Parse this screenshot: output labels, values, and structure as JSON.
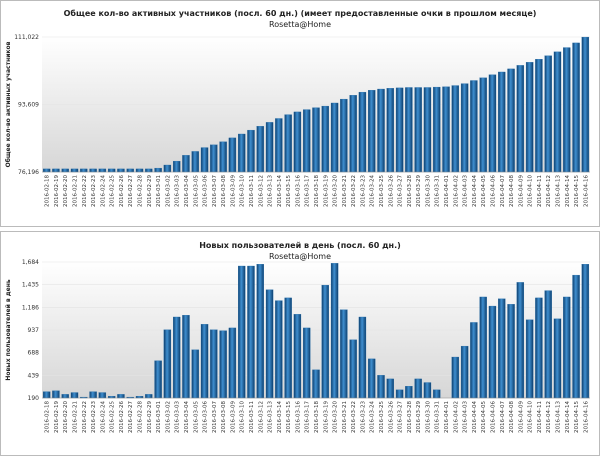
{
  "chart_data": [
    {
      "type": "bar",
      "title": "Общее кол-во активных участников (посл. 60 дн.) (имеет предоставленные очки в прошлом месяце)",
      "subtitle": "Rosetta@Home",
      "y_label": "Общее кол-во активных участников",
      "color": "#1e6aa8",
      "grid": true,
      "ylim": [
        76196,
        111022
      ],
      "yticks": [
        {
          "value": 76196,
          "label": "76,196"
        },
        {
          "value": 93609,
          "label": "93,609"
        },
        {
          "value": 111022,
          "label": "111,022"
        }
      ],
      "categories": [
        "2016-02-18",
        "2016-02-19",
        "2016-02-20",
        "2016-02-21",
        "2016-02-22",
        "2016-02-23",
        "2016-02-24",
        "2016-02-25",
        "2016-02-26",
        "2016-02-27",
        "2016-02-28",
        "2016-02-29",
        "2016-03-01",
        "2016-03-02",
        "2016-03-03",
        "2016-03-04",
        "2016-03-05",
        "2016-03-06",
        "2016-03-07",
        "2016-03-08",
        "2016-03-09",
        "2016-03-10",
        "2016-03-11",
        "2016-03-12",
        "2016-03-13",
        "2016-03-14",
        "2016-03-15",
        "2016-03-16",
        "2016-03-17",
        "2016-03-18",
        "2016-03-19",
        "2016-03-20",
        "2016-03-21",
        "2016-03-22",
        "2016-03-23",
        "2016-03-24",
        "2016-03-25",
        "2016-03-26",
        "2016-03-27",
        "2016-03-28",
        "2016-03-29",
        "2016-03-30",
        "2016-03-31",
        "2016-04-01",
        "2016-04-02",
        "2016-04-03",
        "2016-04-04",
        "2016-04-05",
        "2016-04-06",
        "2016-04-07",
        "2016-04-08",
        "2016-04-09",
        "2016-04-10",
        "2016-04-11",
        "2016-04-12",
        "2016-04-13",
        "2016-04-14",
        "2016-04-15",
        "2016-04-16"
      ],
      "values": [
        77000,
        77000,
        77000,
        77000,
        77000,
        77000,
        77000,
        77000,
        77000,
        77000,
        77000,
        77000,
        77200,
        78000,
        79000,
        80500,
        81500,
        82500,
        83200,
        84000,
        85000,
        86000,
        87000,
        88000,
        89000,
        90000,
        91000,
        91700,
        92300,
        92800,
        93200,
        94000,
        95000,
        96000,
        96800,
        97300,
        97600,
        97800,
        97900,
        98000,
        98000,
        98000,
        98100,
        98200,
        98500,
        99000,
        99800,
        100500,
        101300,
        102000,
        102800,
        103700,
        104500,
        105300,
        106200,
        107200,
        108300,
        109500,
        111000
      ]
    },
    {
      "type": "bar",
      "title": "Новых пользователей в день (посл. 60 дн.)",
      "subtitle": "Rosetta@Home",
      "y_label": "Новых пользователей в день",
      "color": "#1e6aa8",
      "grid": true,
      "ylim": [
        190,
        1684
      ],
      "yticks": [
        190,
        439,
        688,
        937,
        {
          "value": 1186,
          "label": "1,186"
        },
        {
          "value": 1435,
          "label": "1,435"
        },
        {
          "value": 1684,
          "label": "1,684"
        }
      ],
      "categories": [
        "2016-02-18",
        "2016-02-19",
        "2016-02-20",
        "2016-02-21",
        "2016-02-22",
        "2016-02-23",
        "2016-02-24",
        "2016-02-25",
        "2016-02-26",
        "2016-02-27",
        "2016-02-28",
        "2016-02-29",
        "2016-03-01",
        "2016-03-02",
        "2016-03-03",
        "2016-03-04",
        "2016-03-05",
        "2016-03-06",
        "2016-03-07",
        "2016-03-08",
        "2016-03-09",
        "2016-03-10",
        "2016-03-11",
        "2016-03-12",
        "2016-03-13",
        "2016-03-14",
        "2016-03-15",
        "2016-03-16",
        "2016-03-17",
        "2016-03-18",
        "2016-03-19",
        "2016-03-20",
        "2016-03-21",
        "2016-03-22",
        "2016-03-23",
        "2016-03-24",
        "2016-03-25",
        "2016-03-26",
        "2016-03-27",
        "2016-03-28",
        "2016-03-29",
        "2016-03-30",
        "2016-03-31",
        "2016-04-01",
        "2016-04-02",
        "2016-04-03",
        "2016-04-04",
        "2016-04-05",
        "2016-04-06",
        "2016-04-07",
        "2016-04-08",
        "2016-04-09",
        "2016-04-10",
        "2016-04-11",
        "2016-04-12",
        "2016-04-13",
        "2016-04-14",
        "2016-04-15",
        "2016-04-16"
      ],
      "values": [
        260,
        270,
        230,
        250,
        200,
        260,
        250,
        210,
        230,
        200,
        210,
        230,
        600,
        940,
        1080,
        1100,
        720,
        1000,
        940,
        930,
        960,
        1640,
        1640,
        1660,
        1380,
        1260,
        1290,
        1110,
        960,
        500,
        1430,
        1670,
        1160,
        830,
        1080,
        620,
        440,
        400,
        280,
        320,
        400,
        360,
        280,
        190,
        640,
        760,
        1020,
        1300,
        1200,
        1280,
        1220,
        1460,
        1050,
        1290,
        1370,
        1060,
        1300,
        1540,
        1660
      ]
    }
  ]
}
